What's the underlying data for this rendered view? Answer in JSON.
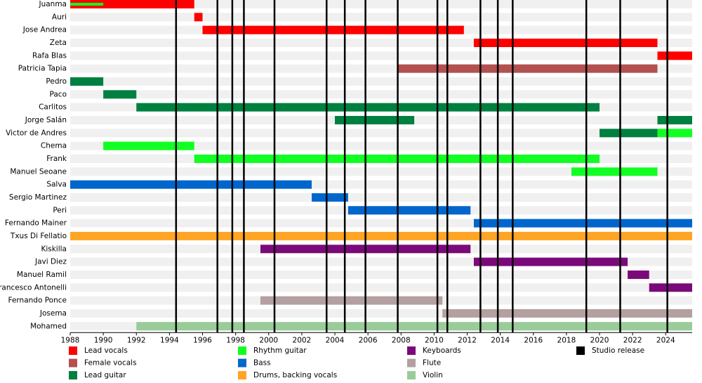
{
  "chart_data": {
    "type": "timeline",
    "xlim": [
      1988,
      2025.6
    ],
    "xticks": [
      1988,
      1990,
      1992,
      1994,
      1996,
      1998,
      2000,
      2002,
      2004,
      2006,
      2008,
      2010,
      2012,
      2014,
      2016,
      2018,
      2020,
      2022,
      2024
    ],
    "roles": [
      {
        "name": "Lead vocals",
        "color": "#ff0000"
      },
      {
        "name": "Female vocals",
        "color": "#b35050"
      },
      {
        "name": "Lead guitar",
        "color": "#008040"
      },
      {
        "name": "Rhythm guitar",
        "color": "#11ff22"
      },
      {
        "name": "Bass",
        "color": "#0066cc"
      },
      {
        "name": "Drums, backing vocals",
        "color": "#ffa526"
      },
      {
        "name": "Keyboards",
        "color": "#7a0a7a"
      },
      {
        "name": "Flute",
        "color": "#b4a0a0"
      },
      {
        "name": "Violin",
        "color": "#99cc99"
      }
    ],
    "releases_label": "Studio release",
    "releases_color": "#000000",
    "releases": [
      1994.4,
      1996.9,
      1997.8,
      1998.5,
      2000.35,
      2003.5,
      2004.6,
      2005.85,
      2007.8,
      2010.2,
      2010.8,
      2012.8,
      2013.85,
      2014.75,
      2019.2,
      2021.25,
      2024.1
    ],
    "members": [
      {
        "name": "Juanma",
        "bars": [
          {
            "role": "Lead vocals",
            "start": 1988,
            "end": 1995.5
          },
          {
            "role": "Rhythm guitar",
            "start": 1988,
            "end": 1990
          }
        ]
      },
      {
        "name": "Auri",
        "bars": [
          {
            "role": "Lead vocals",
            "start": 1995.5,
            "end": 1996
          }
        ]
      },
      {
        "name": "Jose Andrea",
        "bars": [
          {
            "role": "Lead vocals",
            "start": 1996,
            "end": 2011.8
          }
        ]
      },
      {
        "name": "Zeta",
        "bars": [
          {
            "role": "Lead vocals",
            "start": 2012.4,
            "end": 2023.5
          }
        ]
      },
      {
        "name": "Rafa Blas",
        "bars": [
          {
            "role": "Lead vocals",
            "start": 2023.5,
            "end": 2025.6
          }
        ]
      },
      {
        "name": "Patricia Tapia",
        "bars": [
          {
            "role": "Female vocals",
            "start": 2007.8,
            "end": 2023.5
          }
        ]
      },
      {
        "name": "Pedro",
        "bars": [
          {
            "role": "Lead guitar",
            "start": 1988,
            "end": 1990
          }
        ]
      },
      {
        "name": "Paco",
        "bars": [
          {
            "role": "Lead guitar",
            "start": 1990,
            "end": 1992
          }
        ]
      },
      {
        "name": "Carlitos",
        "bars": [
          {
            "role": "Lead guitar",
            "start": 1992,
            "end": 2020
          }
        ]
      },
      {
        "name": "Jorge Salán",
        "bars": [
          {
            "role": "Lead guitar",
            "start": 2004,
            "end": 2008.8
          },
          {
            "role": "Lead guitar",
            "start": 2023.5,
            "end": 2025.6
          }
        ]
      },
      {
        "name": "Victor de Andres",
        "bars": [
          {
            "role": "Lead guitar",
            "start": 2020,
            "end": 2023.5
          },
          {
            "role": "Rhythm guitar",
            "start": 2023.5,
            "end": 2025.6
          }
        ]
      },
      {
        "name": "Chema",
        "bars": [
          {
            "role": "Rhythm guitar",
            "start": 1990,
            "end": 1995.5
          }
        ]
      },
      {
        "name": "Frank",
        "bars": [
          {
            "role": "Rhythm guitar",
            "start": 1995.5,
            "end": 2020
          }
        ]
      },
      {
        "name": "Manuel Seoane",
        "bars": [
          {
            "role": "Rhythm guitar",
            "start": 2018.3,
            "end": 2023.5
          }
        ]
      },
      {
        "name": "Salva",
        "bars": [
          {
            "role": "Bass",
            "start": 1988,
            "end": 2002.6
          }
        ]
      },
      {
        "name": "Sergio Martinez",
        "bars": [
          {
            "role": "Bass",
            "start": 2002.6,
            "end": 2004.8
          }
        ]
      },
      {
        "name": "Peri",
        "bars": [
          {
            "role": "Bass",
            "start": 2004.8,
            "end": 2012.2
          }
        ]
      },
      {
        "name": "Fernando Mainer",
        "bars": [
          {
            "role": "Bass",
            "start": 2012.4,
            "end": 2025.6
          }
        ]
      },
      {
        "name": "Txus Di Fellatio",
        "bars": [
          {
            "role": "Drums, backing vocals",
            "start": 1988,
            "end": 2025.6
          }
        ]
      },
      {
        "name": "Kiskilla",
        "bars": [
          {
            "role": "Keyboards",
            "start": 1999.5,
            "end": 2012.2
          }
        ]
      },
      {
        "name": "Javi Diez",
        "bars": [
          {
            "role": "Keyboards",
            "start": 2012.4,
            "end": 2021.7
          }
        ]
      },
      {
        "name": "Manuel Ramil",
        "bars": [
          {
            "role": "Keyboards",
            "start": 2021.7,
            "end": 2023
          }
        ]
      },
      {
        "name": "Francesco Antonelli",
        "bars": [
          {
            "role": "Keyboards",
            "start": 2023,
            "end": 2025.6
          }
        ]
      },
      {
        "name": "Fernando Ponce",
        "bars": [
          {
            "role": "Flute",
            "start": 1999.5,
            "end": 2010.5
          }
        ]
      },
      {
        "name": "Josema",
        "bars": [
          {
            "role": "Flute",
            "start": 2010.5,
            "end": 2025.6
          }
        ]
      },
      {
        "name": "Mohamed",
        "bars": [
          {
            "role": "Violin",
            "start": 1992,
            "end": 2025.6
          }
        ]
      }
    ]
  }
}
